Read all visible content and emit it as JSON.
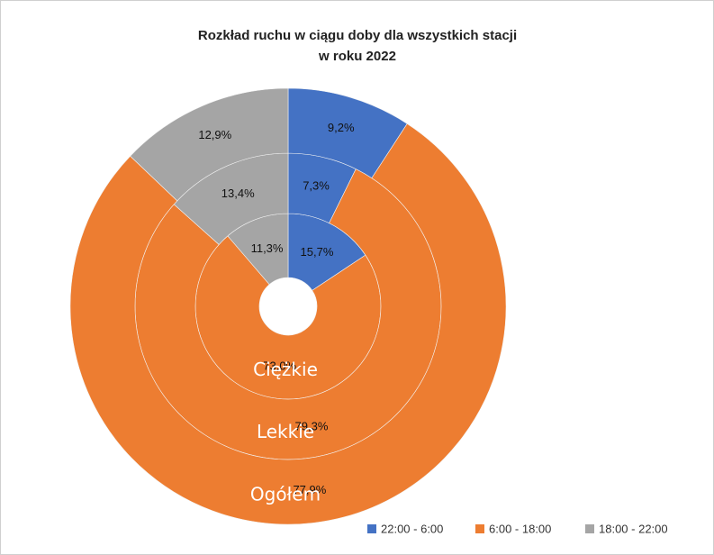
{
  "chart_data": {
    "type": "multi-donut",
    "title": [
      "Rozkład ruchu w ciągu doby dla wszystkich stacji",
      "w roku 2022"
    ],
    "categories": [
      "22:00 - 6:00",
      "6:00 - 18:00",
      "18:00 - 22:00"
    ],
    "colors": [
      "#4472c4",
      "#ed7d31",
      "#a5a5a5"
    ],
    "rings": [
      {
        "name": "Ciężkie",
        "values": [
          15.7,
          73.0,
          11.3
        ],
        "value_labels": [
          "15,7%",
          "73,0%",
          "11,3%"
        ]
      },
      {
        "name": "Lekkie",
        "values": [
          7.3,
          79.3,
          13.4
        ],
        "value_labels": [
          "7,3%",
          "79,3%",
          "13,4%"
        ]
      },
      {
        "name": "Ogółem",
        "values": [
          9.2,
          77.9,
          12.9
        ],
        "value_labels": [
          "9,2%",
          "77,9%",
          "12,9%"
        ]
      }
    ],
    "legend": "bottom-right"
  }
}
